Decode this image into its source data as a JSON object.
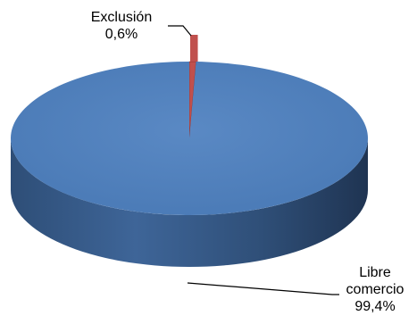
{
  "chart_data": {
    "type": "pie",
    "title": "",
    "slices": [
      {
        "label": "Exclusión",
        "value": 0.6,
        "value_label": "0,6%",
        "color": "#C0504D"
      },
      {
        "label": "Libre comercio",
        "value": 99.4,
        "value_label": "99,4%",
        "color": "#4F81BD"
      }
    ],
    "style": "3d",
    "legend": "none"
  }
}
